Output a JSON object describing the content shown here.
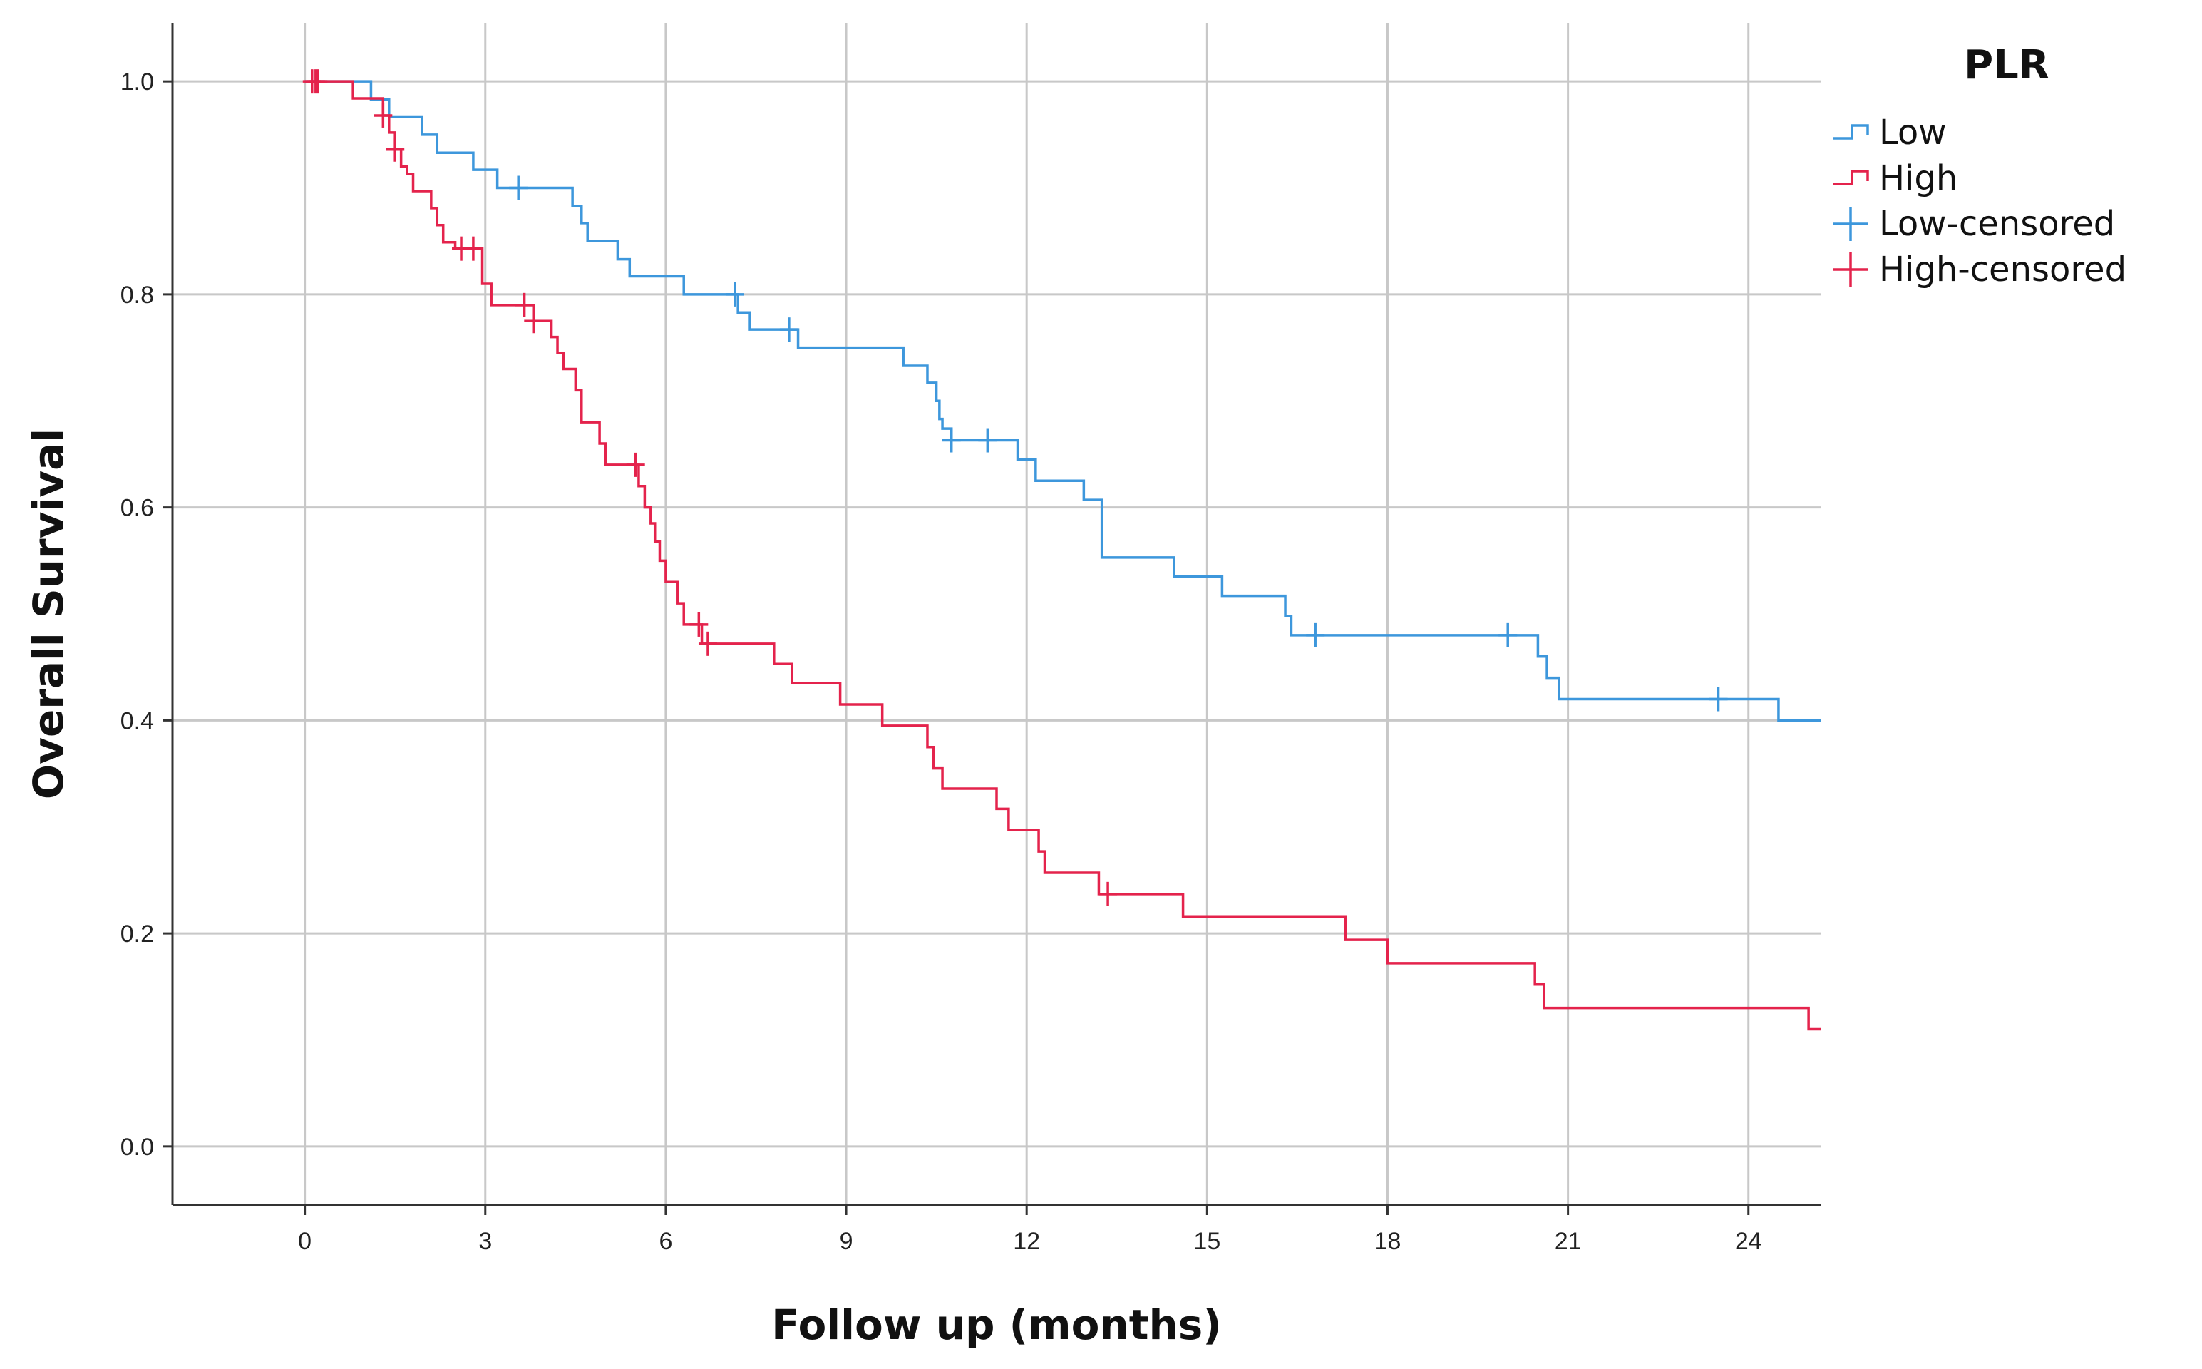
{
  "chart_data": {
    "type": "line",
    "subtype": "kaplan-meier-step",
    "title": "",
    "xlabel": "Follow up (months)",
    "ylabel": "Overall Survival",
    "xlim": [
      -2.2,
      25.2
    ],
    "ylim": [
      -0.055,
      1.055
    ],
    "x_ticks": [
      0,
      3,
      6,
      9,
      12,
      15,
      18,
      21,
      24
    ],
    "y_ticks": [
      0.0,
      0.2,
      0.4,
      0.6,
      0.8,
      1.0
    ],
    "x_tick_labels": [
      "0",
      "3",
      "6",
      "9",
      "12",
      "15",
      "18",
      "21",
      "24"
    ],
    "y_tick_labels": [
      "0.0",
      "0.2",
      "0.4",
      "0.6",
      "0.8",
      "1.0"
    ],
    "grid": true,
    "legend": {
      "title": "PLR",
      "position": "top-right",
      "entries": [
        {
          "label": "Low",
          "kind": "step",
          "color": "#3d97dc"
        },
        {
          "label": "High",
          "kind": "step",
          "color": "#e4234c"
        },
        {
          "label": "Low-censored",
          "kind": "censor",
          "color": "#3d97dc"
        },
        {
          "label": "High-censored",
          "kind": "censor",
          "color": "#e4234c"
        }
      ]
    },
    "series": [
      {
        "name": "Low",
        "color": "#3d97dc",
        "steps": [
          [
            0,
            1.0
          ],
          [
            1.1,
            0.983
          ],
          [
            1.4,
            0.967
          ],
          [
            1.95,
            0.95
          ],
          [
            2.2,
            0.933
          ],
          [
            2.8,
            0.917
          ],
          [
            3.2,
            0.9
          ],
          [
            4.45,
            0.883
          ],
          [
            4.6,
            0.867
          ],
          [
            4.7,
            0.85
          ],
          [
            5.2,
            0.833
          ],
          [
            5.4,
            0.817
          ],
          [
            6.3,
            0.8
          ],
          [
            7.2,
            0.783
          ],
          [
            7.4,
            0.767
          ],
          [
            8.2,
            0.75
          ],
          [
            9.95,
            0.733
          ],
          [
            10.35,
            0.717
          ],
          [
            10.5,
            0.7
          ],
          [
            10.55,
            0.683
          ],
          [
            10.6,
            0.674
          ],
          [
            10.75,
            0.663
          ],
          [
            11.85,
            0.645
          ],
          [
            12.15,
            0.625
          ],
          [
            12.95,
            0.607
          ],
          [
            13.25,
            0.553
          ],
          [
            14.45,
            0.535
          ],
          [
            15.25,
            0.517
          ],
          [
            16.3,
            0.498
          ],
          [
            16.4,
            0.48
          ],
          [
            20.5,
            0.46
          ],
          [
            20.65,
            0.44
          ],
          [
            20.85,
            0.42
          ],
          [
            24.5,
            0.4
          ],
          [
            25.2,
            0.4
          ]
        ],
        "censored": [
          3.55,
          7.15,
          8.05,
          10.75,
          11.35,
          16.8,
          20.0,
          23.5
        ]
      },
      {
        "name": "High",
        "color": "#e4234c",
        "steps": [
          [
            0,
            1.0
          ],
          [
            0.8,
            0.984
          ],
          [
            1.3,
            0.968
          ],
          [
            1.4,
            0.952
          ],
          [
            1.5,
            0.936
          ],
          [
            1.6,
            0.92
          ],
          [
            1.7,
            0.913
          ],
          [
            1.8,
            0.897
          ],
          [
            2.1,
            0.881
          ],
          [
            2.2,
            0.865
          ],
          [
            2.3,
            0.849
          ],
          [
            2.5,
            0.843
          ],
          [
            2.95,
            0.81
          ],
          [
            3.1,
            0.79
          ],
          [
            3.8,
            0.775
          ],
          [
            4.1,
            0.76
          ],
          [
            4.2,
            0.745
          ],
          [
            4.3,
            0.73
          ],
          [
            4.5,
            0.71
          ],
          [
            4.6,
            0.68
          ],
          [
            4.9,
            0.66
          ],
          [
            5.0,
            0.64
          ],
          [
            5.55,
            0.62
          ],
          [
            5.65,
            0.6
          ],
          [
            5.75,
            0.585
          ],
          [
            5.82,
            0.568
          ],
          [
            5.9,
            0.55
          ],
          [
            6.0,
            0.53
          ],
          [
            6.2,
            0.51
          ],
          [
            6.3,
            0.49
          ],
          [
            6.6,
            0.472
          ],
          [
            7.8,
            0.453
          ],
          [
            8.1,
            0.435
          ],
          [
            8.9,
            0.415
          ],
          [
            9.6,
            0.395
          ],
          [
            10.35,
            0.375
          ],
          [
            10.45,
            0.355
          ],
          [
            10.6,
            0.336
          ],
          [
            11.5,
            0.317
          ],
          [
            11.7,
            0.297
          ],
          [
            12.2,
            0.277
          ],
          [
            12.3,
            0.257
          ],
          [
            13.2,
            0.237
          ],
          [
            14.6,
            0.216
          ],
          [
            17.3,
            0.194
          ],
          [
            18.0,
            0.172
          ],
          [
            20.45,
            0.152
          ],
          [
            20.6,
            0.13
          ],
          [
            25.0,
            0.11
          ],
          [
            25.2,
            0.11
          ]
        ],
        "censored": [
          0.12,
          0.18,
          0.22,
          1.3,
          1.5,
          2.6,
          2.8,
          3.65,
          3.8,
          5.5,
          6.55,
          6.7,
          13.35
        ]
      }
    ]
  }
}
